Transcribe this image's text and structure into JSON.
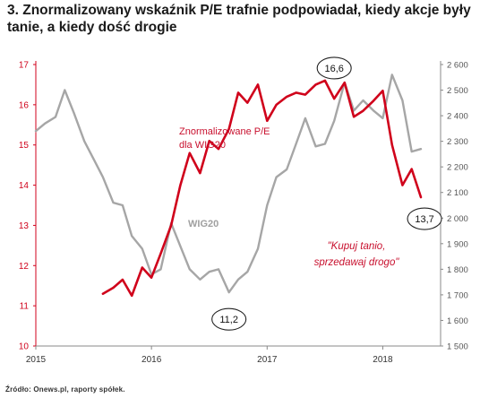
{
  "title": "3. Znormalizowany wskaźnik P/E trafnie podpowiadał, kiedy akcje były tanie, a kiedy dość drogie",
  "source": "Źródło: Onews.pl, raporty spółek.",
  "colors": {
    "pe": "#d0021b",
    "wig": "#a6a6a6",
    "left_axis": "#d0021b"
  },
  "chart_data": {
    "type": "line",
    "title": "3. Znormalizowany wskaźnik P/E trafnie podpowiadał, kiedy akcje były tanie, a kiedy dość drogie",
    "x_axis": {
      "min": 2015.0,
      "max": 2018.5,
      "ticks": [
        "2015",
        "2016",
        "2017",
        "2018"
      ]
    },
    "y_left": {
      "min": 10,
      "max": 17,
      "ticks": [
        "10",
        "11",
        "12",
        "13",
        "14",
        "15",
        "16",
        "17"
      ]
    },
    "y_right": {
      "min": 1500,
      "max": 2600,
      "ticks": [
        "1 500",
        "1 600",
        "1 700",
        "1 800",
        "1 900",
        "2 000",
        "2 100",
        "2 200",
        "2 300",
        "2 400",
        "2 500",
        "2 600"
      ]
    },
    "grid": false,
    "series": [
      {
        "name": "Znormalizowane P/E dla WIG20",
        "axis": "left",
        "x": [
          2015.58,
          2015.67,
          2015.75,
          2015.83,
          2015.92,
          2016.0,
          2016.08,
          2016.17,
          2016.25,
          2016.33,
          2016.42,
          2016.5,
          2016.58,
          2016.67,
          2016.75,
          2016.83,
          2016.92,
          2017.0,
          2017.08,
          2017.17,
          2017.25,
          2017.33,
          2017.42,
          2017.5,
          2017.58,
          2017.67,
          2017.75,
          2017.83,
          2017.92,
          2018.0,
          2018.08,
          2018.17,
          2018.25,
          2018.33
        ],
        "y": [
          11.3,
          11.45,
          11.65,
          11.25,
          11.95,
          11.7,
          12.3,
          13.0,
          14.0,
          14.8,
          14.3,
          15.1,
          14.9,
          15.4,
          16.3,
          16.05,
          16.5,
          15.6,
          16.0,
          16.2,
          16.3,
          16.25,
          16.5,
          16.6,
          16.15,
          16.55,
          15.7,
          15.85,
          16.1,
          16.35,
          15.0,
          14.0,
          14.4,
          13.7
        ]
      },
      {
        "name": "WIG20",
        "axis": "right",
        "x": [
          2015.0,
          2015.08,
          2015.17,
          2015.25,
          2015.33,
          2015.42,
          2015.5,
          2015.58,
          2015.67,
          2015.75,
          2015.83,
          2015.92,
          2016.0,
          2016.08,
          2016.17,
          2016.25,
          2016.33,
          2016.42,
          2016.5,
          2016.58,
          2016.67,
          2016.75,
          2016.83,
          2016.92,
          2017.0,
          2017.08,
          2017.17,
          2017.25,
          2017.33,
          2017.42,
          2017.5,
          2017.58,
          2017.67,
          2017.75,
          2017.83,
          2017.92,
          2018.0,
          2018.08,
          2018.17,
          2018.25,
          2018.33
        ],
        "y": [
          2340,
          2370,
          2395,
          2500,
          2410,
          2300,
          2230,
          2160,
          2060,
          2050,
          1930,
          1880,
          1780,
          1800,
          1980,
          1890,
          1800,
          1760,
          1790,
          1800,
          1710,
          1760,
          1790,
          1880,
          2050,
          2160,
          2190,
          2290,
          2390,
          2280,
          2290,
          2380,
          2530,
          2420,
          2460,
          2420,
          2390,
          2560,
          2460,
          2260,
          2270
        ]
      }
    ],
    "annotations": {
      "series_label_pe": [
        "Znormalizowane P/E",
        "dla WIG20"
      ],
      "series_label_wig": "WIG20",
      "note": [
        "\"Kupuj tanio,",
        "sprzedawaj drogo\""
      ],
      "callouts": [
        {
          "text": "16,6",
          "x": 2017.58,
          "y": 16.6
        },
        {
          "text": "11,2",
          "x": 2016.67,
          "y": 11.2
        },
        {
          "text": "13,7",
          "x": 2018.33,
          "y": 13.7
        }
      ]
    }
  }
}
